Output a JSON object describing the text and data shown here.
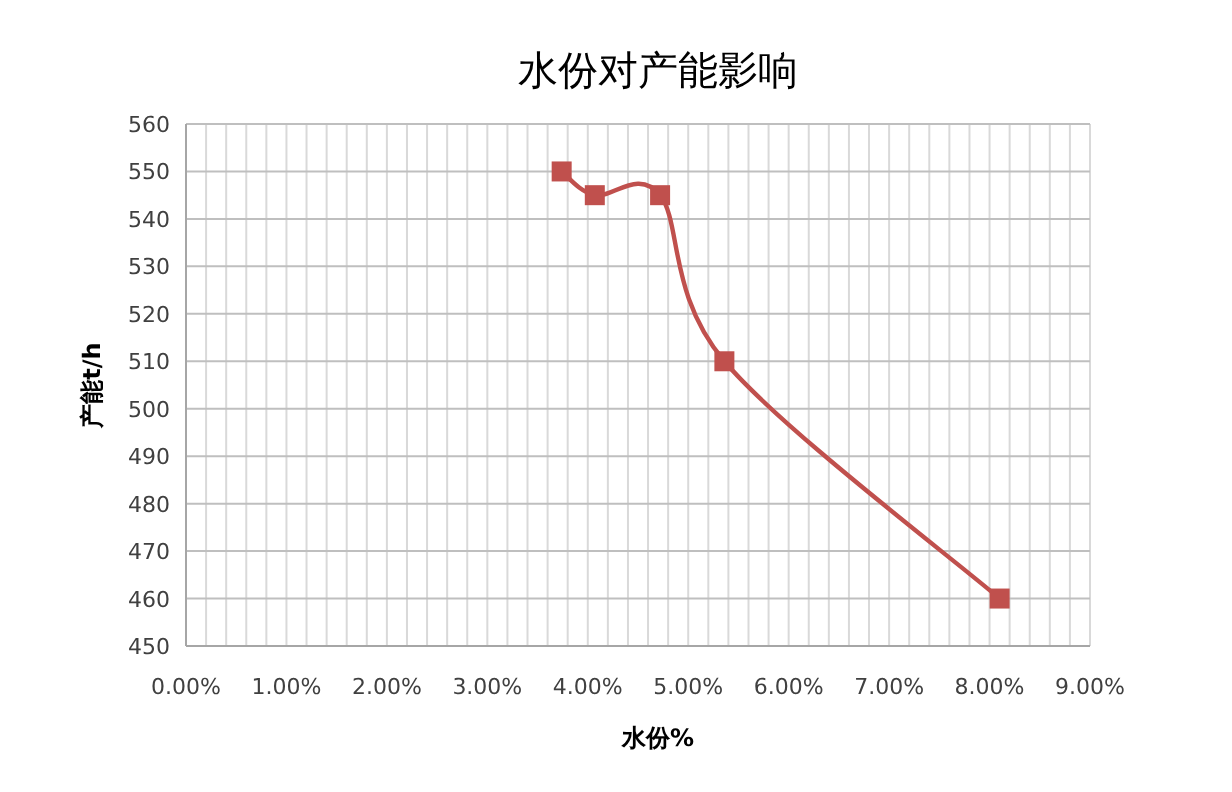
{
  "chart_data": {
    "type": "line",
    "title": "水份对产能影响",
    "xlabel": "水份%",
    "ylabel": "产能t/h",
    "x": [
      3.74,
      4.07,
      4.72,
      5.36,
      8.1
    ],
    "series": [
      {
        "color": "#c0504d",
        "values": [
          550,
          545,
          545,
          510,
          460
        ]
      }
    ],
    "xlim": [
      0,
      9
    ],
    "xticks": [
      {
        "value": 0,
        "label": "0.00%"
      },
      {
        "value": 0.2,
        "label": null
      },
      {
        "value": 0.4,
        "label": null
      },
      {
        "value": 0.6,
        "label": null
      },
      {
        "value": 0.8,
        "label": null
      },
      {
        "value": 1,
        "label": "1.00%"
      },
      {
        "value": 1.2,
        "label": null
      },
      {
        "value": 1.4,
        "label": null
      },
      {
        "value": 1.6,
        "label": null
      },
      {
        "value": 1.8,
        "label": null
      },
      {
        "value": 2,
        "label": "2.00%"
      },
      {
        "value": 2.2,
        "label": null
      },
      {
        "value": 2.4,
        "label": null
      },
      {
        "value": 2.6,
        "label": null
      },
      {
        "value": 2.8,
        "label": null
      },
      {
        "value": 3,
        "label": "3.00%"
      },
      {
        "value": 3.2,
        "label": null
      },
      {
        "value": 3.4,
        "label": null
      },
      {
        "value": 3.6,
        "label": null
      },
      {
        "value": 3.8,
        "label": null
      },
      {
        "value": 4,
        "label": "4.00%"
      },
      {
        "value": 4.2,
        "label": null
      },
      {
        "value": 4.4,
        "label": null
      },
      {
        "value": 4.6,
        "label": null
      },
      {
        "value": 4.8,
        "label": null
      },
      {
        "value": 5,
        "label": "5.00%"
      },
      {
        "value": 5.2,
        "label": null
      },
      {
        "value": 5.4,
        "label": null
      },
      {
        "value": 5.6,
        "label": null
      },
      {
        "value": 5.8,
        "label": null
      },
      {
        "value": 6,
        "label": "6.00%"
      },
      {
        "value": 6.2,
        "label": null
      },
      {
        "value": 6.4,
        "label": null
      },
      {
        "value": 6.6,
        "label": null
      },
      {
        "value": 6.8,
        "label": null
      },
      {
        "value": 7,
        "label": "7.00%"
      },
      {
        "value": 7.2,
        "label": null
      },
      {
        "value": 7.4,
        "label": null
      },
      {
        "value": 7.6,
        "label": null
      },
      {
        "value": 7.8,
        "label": null
      },
      {
        "value": 8,
        "label": "8.00%"
      },
      {
        "value": 8.2,
        "label": null
      },
      {
        "value": 8.4,
        "label": null
      },
      {
        "value": 8.6,
        "label": null
      },
      {
        "value": 8.8,
        "label": null
      },
      {
        "value": 9,
        "label": "9.00%"
      }
    ],
    "ylim": [
      450,
      560
    ],
    "yticks": [
      450,
      460,
      470,
      480,
      490,
      500,
      510,
      520,
      530,
      540,
      550,
      560
    ],
    "grid": true,
    "marker": "square",
    "line_style": "solid"
  }
}
